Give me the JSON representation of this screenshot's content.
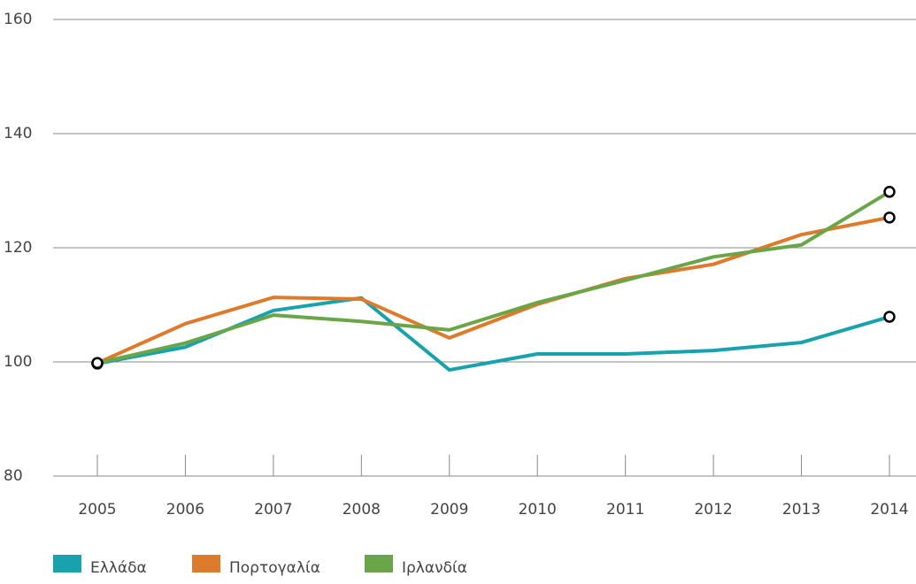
{
  "chart_data": {
    "type": "line",
    "categories": [
      "2005",
      "2006",
      "2007",
      "2008",
      "2009",
      "2010",
      "2011",
      "2012",
      "2013",
      "2014"
    ],
    "series": [
      {
        "name": "Ελλάδα",
        "color": "#17a2ad",
        "values": [
          99.7,
          102.6,
          109,
          111.2,
          98.6,
          101.4,
          101.4,
          102,
          103.4,
          107.9
        ]
      },
      {
        "name": "Πορτογαλία",
        "color": "#dd7a2c",
        "values": [
          99.8,
          106.7,
          111.3,
          111,
          104.2,
          110.1,
          114.6,
          117.1,
          122.3,
          125.3
        ]
      },
      {
        "name": "Ιρλανδία",
        "color": "#6aa547",
        "values": [
          99.8,
          103.3,
          108.2,
          107.1,
          105.6,
          110.4,
          114.3,
          118.4,
          120.5,
          129.8
        ]
      }
    ],
    "ylim": [
      80,
      160
    ],
    "yticks": [
      80,
      100,
      120,
      140,
      160
    ],
    "grid": true,
    "legend": "bottom"
  }
}
